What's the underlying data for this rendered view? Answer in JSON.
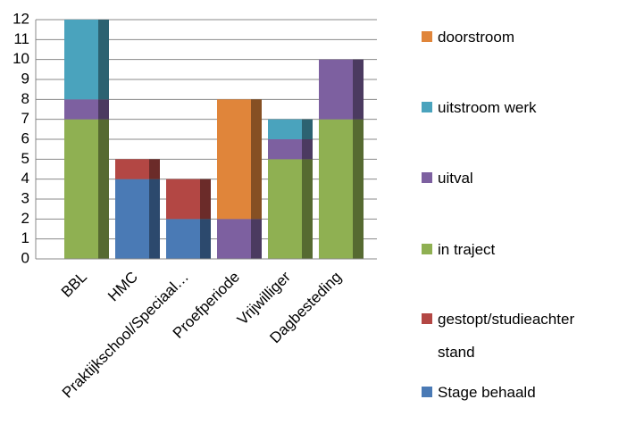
{
  "chart_data": {
    "type": "stacked-bar",
    "categories": [
      "BBL",
      "HMC",
      "Praktijkschool/Speciaal…",
      "Proefperiode",
      "Vrijwilliger",
      "Dagbesteding"
    ],
    "series": [
      {
        "name": "Stage behaald",
        "color": "#4a7ab5",
        "values": [
          0,
          4,
          2,
          0,
          0,
          0
        ]
      },
      {
        "name": "gestopt/studieachterstand",
        "color": "#b34744",
        "values": [
          0,
          1,
          2,
          0,
          0,
          0
        ]
      },
      {
        "name": "in traject",
        "color": "#8fb052",
        "values": [
          7,
          0,
          0,
          0,
          5,
          7
        ]
      },
      {
        "name": "uitval",
        "color": "#7d60a0",
        "values": [
          1,
          0,
          0,
          2,
          1,
          3
        ]
      },
      {
        "name": "uitstroom werk",
        "color": "#4aa3bd",
        "values": [
          4,
          0,
          0,
          0,
          1,
          0
        ]
      },
      {
        "name": "doorstroom",
        "color": "#e0853a",
        "values": [
          0,
          0,
          0,
          6,
          0,
          0
        ]
      }
    ],
    "ylim": [
      0,
      12
    ],
    "yticks": [
      0,
      1,
      2,
      3,
      4,
      5,
      6,
      7,
      8,
      9,
      10,
      11,
      12
    ],
    "grid": true,
    "legend": "right"
  }
}
